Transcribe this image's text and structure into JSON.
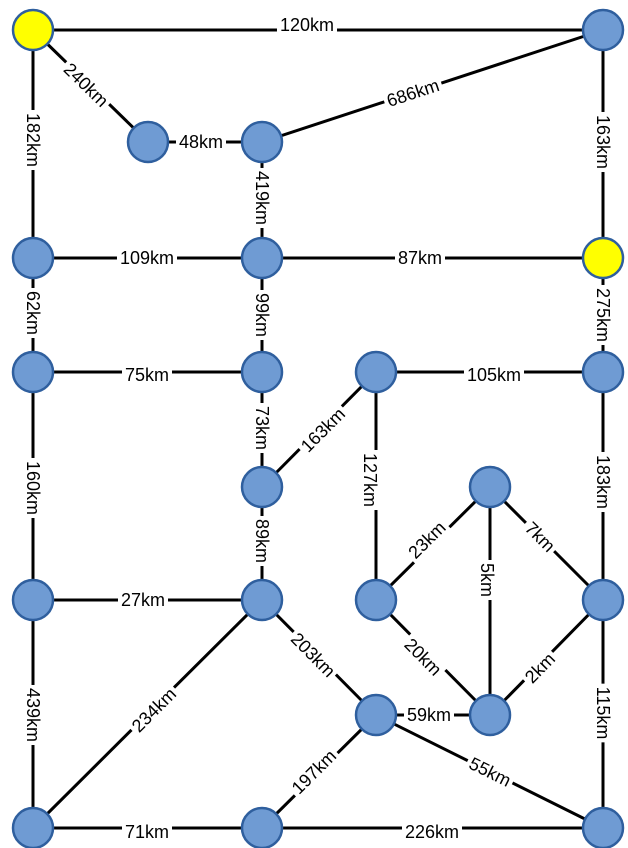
{
  "colors": {
    "node_default": "#6f9bd3",
    "node_highlight": "#ffff00",
    "edge": "#000000",
    "background": "#ffffff"
  },
  "nodes": [
    {
      "id": "n1",
      "highlight": true
    },
    {
      "id": "n2",
      "highlight": false
    },
    {
      "id": "n3",
      "highlight": false
    },
    {
      "id": "n4",
      "highlight": false
    },
    {
      "id": "n5",
      "highlight": false
    },
    {
      "id": "n6",
      "highlight": false
    },
    {
      "id": "n7",
      "highlight": true
    },
    {
      "id": "n8",
      "highlight": false
    },
    {
      "id": "n9",
      "highlight": false
    },
    {
      "id": "n10",
      "highlight": false
    },
    {
      "id": "n11",
      "highlight": false
    },
    {
      "id": "n12",
      "highlight": false
    },
    {
      "id": "n13",
      "highlight": false
    },
    {
      "id": "n14",
      "highlight": false
    },
    {
      "id": "n15",
      "highlight": false
    },
    {
      "id": "n16",
      "highlight": false
    },
    {
      "id": "n17",
      "highlight": false
    },
    {
      "id": "n18",
      "highlight": false
    },
    {
      "id": "n19",
      "highlight": false
    },
    {
      "id": "n20",
      "highlight": false
    },
    {
      "id": "n21",
      "highlight": false
    },
    {
      "id": "n22",
      "highlight": false
    },
    {
      "id": "n23",
      "highlight": false
    }
  ],
  "edges": [
    {
      "from": "n1",
      "to": "n2",
      "label": "120km"
    },
    {
      "from": "n1",
      "to": "n3",
      "label": "240km"
    },
    {
      "from": "n1",
      "to": "n5",
      "label": "182km"
    },
    {
      "from": "n3",
      "to": "n4",
      "label": "48km"
    },
    {
      "from": "n4",
      "to": "n2",
      "label": "686km"
    },
    {
      "from": "n2",
      "to": "n7",
      "label": "163km"
    },
    {
      "from": "n4",
      "to": "n6",
      "label": "419km"
    },
    {
      "from": "n5",
      "to": "n6",
      "label": "109km"
    },
    {
      "from": "n6",
      "to": "n7",
      "label": "87km"
    },
    {
      "from": "n5",
      "to": "n8",
      "label": "62km"
    },
    {
      "from": "n6",
      "to": "n9",
      "label": "99km"
    },
    {
      "from": "n7",
      "to": "n11",
      "label": "275km"
    },
    {
      "from": "n8",
      "to": "n9",
      "label": "75km"
    },
    {
      "from": "n10",
      "to": "n11",
      "label": "105km"
    },
    {
      "from": "n9",
      "to": "n12",
      "label": "73km"
    },
    {
      "from": "n12",
      "to": "n10",
      "label": "163km"
    },
    {
      "from": "n10",
      "to": "n15",
      "label": "127km"
    },
    {
      "from": "n8",
      "to": "n13",
      "label": "160km"
    },
    {
      "from": "n11",
      "to": "n16",
      "label": "183km"
    },
    {
      "from": "n12",
      "to": "n14",
      "label": "89km"
    },
    {
      "from": "n13",
      "to": "n14",
      "label": "27km"
    },
    {
      "from": "n15",
      "to": "n17",
      "label": "23km"
    },
    {
      "from": "n17",
      "to": "n16",
      "label": "7km"
    },
    {
      "from": "n17",
      "to": "n19",
      "label": "5km"
    },
    {
      "from": "n15",
      "to": "n19",
      "label": "20km"
    },
    {
      "from": "n19",
      "to": "n16",
      "label": "2km"
    },
    {
      "from": "n14",
      "to": "n18",
      "label": "203km"
    },
    {
      "from": "n18",
      "to": "n19",
      "label": "59km"
    },
    {
      "from": "n14",
      "to": "n20",
      "label": "234km"
    },
    {
      "from": "n13",
      "to": "n20",
      "label": "439km"
    },
    {
      "from": "n16",
      "to": "n23",
      "label": "115km"
    },
    {
      "from": "n18",
      "to": "n23",
      "label": "55km"
    },
    {
      "from": "n18",
      "to": "n21",
      "label": "197km"
    },
    {
      "from": "n20",
      "to": "n21",
      "label": "71km"
    },
    {
      "from": "n21",
      "to": "n23",
      "label": "226km"
    }
  ]
}
